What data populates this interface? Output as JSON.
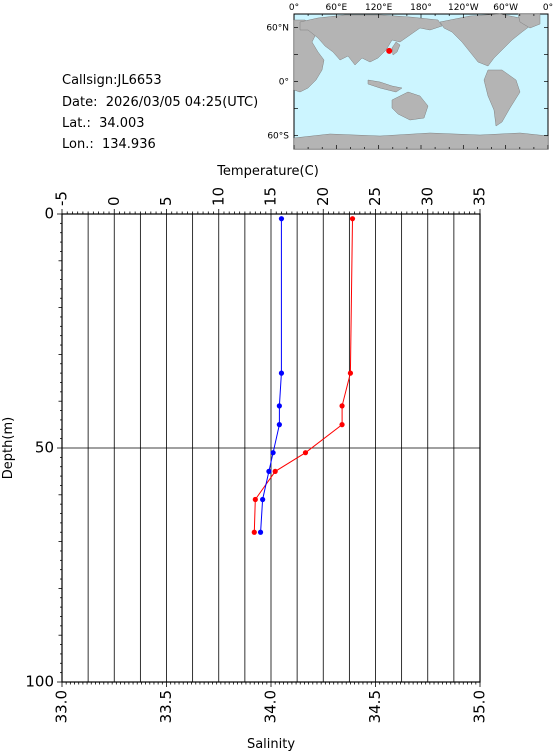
{
  "info": {
    "callsign": "Callsign:JL6653",
    "date": "Date:  2026/03/05 04:25(UTC)",
    "lat": "Lat.:  34.003",
    "lon": "Lon.:  134.936"
  },
  "map": {
    "top_labels": [
      "0°",
      "60°E",
      "120°E",
      "180°",
      "120°W",
      "60°W",
      "0°"
    ],
    "left_labels": [
      "60°N",
      "0°",
      "60°S"
    ],
    "ocean_color": "#ccf5ff",
    "land_color": "#b4b4b4",
    "marker_color": "#ff0000",
    "marker_lon": 134.936,
    "marker_lat": 34.003
  },
  "chart_data": {
    "type": "line",
    "depth_label": "Depth(m)",
    "temperature_label": "Temperature(C)",
    "salinity_label": "Salinity",
    "depth_range": [
      0,
      100
    ],
    "depth_ticks": [
      "0",
      "50",
      "100"
    ],
    "temperature_range": [
      -5,
      35
    ],
    "temperature_ticks": [
      "-5",
      "0",
      "5",
      "10",
      "15",
      "20",
      "25",
      "30",
      "35"
    ],
    "salinity_range": [
      33.0,
      35.0
    ],
    "salinity_ticks": [
      "33.0",
      "33.5",
      "34.0",
      "34.5",
      "35.0"
    ],
    "grid": true,
    "series": [
      {
        "variable": "temperature",
        "color": "#ff0000",
        "points": [
          [
            22.8,
            1
          ],
          [
            22.6,
            34
          ],
          [
            21.8,
            41
          ],
          [
            21.8,
            45
          ],
          [
            18.3,
            51
          ],
          [
            15.4,
            55
          ],
          [
            13.5,
            61
          ],
          [
            13.4,
            68
          ]
        ]
      },
      {
        "variable": "salinity",
        "color": "#0000ff",
        "points": [
          [
            34.05,
            1
          ],
          [
            34.05,
            34
          ],
          [
            34.04,
            41
          ],
          [
            34.04,
            45
          ],
          [
            34.01,
            51
          ],
          [
            33.99,
            55
          ],
          [
            33.96,
            61
          ],
          [
            33.95,
            68
          ]
        ]
      }
    ]
  }
}
